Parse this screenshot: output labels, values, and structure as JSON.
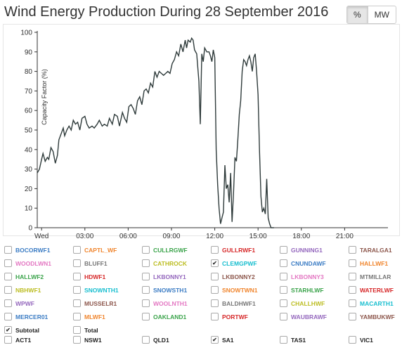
{
  "title": "Wind Energy Production During 28 September 2016",
  "toggle": {
    "percent": "%",
    "mw": "MW"
  },
  "chart_data": {
    "type": "line",
    "ylabel": "Capacity Factor (%)",
    "ylim": [
      0,
      100
    ],
    "yticks": [
      "0",
      "10",
      "20",
      "30",
      "40",
      "50",
      "60",
      "70",
      "80",
      "90",
      "100"
    ],
    "xlim": [
      -0.3,
      24
    ],
    "xticks": [
      {
        "v": 0,
        "label": "Wed"
      },
      {
        "v": 3,
        "label": "03:00"
      },
      {
        "v": 6,
        "label": "06:00"
      },
      {
        "v": 9,
        "label": "09:00"
      },
      {
        "v": 12,
        "label": "12:00"
      },
      {
        "v": 15,
        "label": "15:00"
      },
      {
        "v": 18,
        "label": "18:00"
      },
      {
        "v": 21,
        "label": "21:00"
      }
    ],
    "series": [
      {
        "color": "#2f3b3b",
        "x": [
          -0.3,
          -0.15,
          0,
          0.1,
          0.25,
          0.4,
          0.5,
          0.65,
          0.8,
          0.95,
          1.1,
          1.2,
          1.35,
          1.5,
          1.6,
          1.75,
          1.9,
          2.05,
          2.2,
          2.35,
          2.5,
          2.65,
          2.8,
          3.0,
          3.15,
          3.3,
          3.5,
          3.65,
          3.85,
          4.0,
          4.2,
          4.35,
          4.55,
          4.7,
          4.9,
          5.05,
          5.25,
          5.4,
          5.6,
          5.75,
          5.9,
          6.05,
          6.2,
          6.35,
          6.5,
          6.65,
          6.8,
          6.95,
          7.1,
          7.25,
          7.4,
          7.55,
          7.7,
          7.85,
          8.0,
          8.15,
          8.3,
          8.45,
          8.6,
          8.75,
          8.9,
          9.05,
          9.2,
          9.35,
          9.5,
          9.65,
          9.8,
          9.95,
          10.05,
          10.15,
          10.3,
          10.4,
          10.5,
          10.6,
          10.75,
          10.9,
          11.0,
          11.1,
          11.2,
          11.3,
          11.45,
          11.6,
          11.7,
          11.8,
          11.9,
          12.0,
          12.1,
          12.2,
          12.3,
          12.4,
          12.5,
          12.6,
          12.7,
          12.8,
          12.9,
          13.0,
          13.1,
          13.2,
          13.3,
          13.4,
          13.5,
          13.6,
          13.7,
          13.8,
          13.9,
          14.0,
          14.1,
          14.2,
          14.3,
          14.4,
          14.5,
          14.6,
          14.7,
          14.8,
          14.9,
          15.0,
          15.1,
          15.2,
          15.3,
          15.4,
          15.5,
          15.6,
          15.7,
          15.8,
          15.9,
          16.0,
          16.05,
          16.1
        ],
        "values": [
          28,
          30,
          35,
          38,
          34,
          36,
          35,
          41,
          39,
          33,
          37,
          45,
          48,
          51,
          47,
          50,
          52,
          50,
          55,
          53,
          54,
          50,
          56,
          57,
          53,
          51,
          52,
          51,
          53,
          55,
          52,
          53,
          52,
          56,
          53,
          58,
          57,
          52,
          59,
          56,
          54,
          62,
          63,
          61,
          58,
          65,
          67,
          63,
          70,
          71,
          69,
          74,
          72,
          80,
          77,
          80,
          79,
          78,
          79,
          80,
          79,
          84,
          86,
          90,
          88,
          94,
          90,
          96,
          92,
          96,
          95,
          97,
          96,
          91,
          89,
          75,
          53,
          89,
          85,
          92,
          90,
          90,
          88,
          85,
          91,
          87,
          40,
          22,
          10,
          2,
          5,
          8,
          32,
          20,
          22,
          13,
          28,
          3,
          18,
          36,
          34,
          45,
          58,
          65,
          80,
          86,
          85,
          83,
          86,
          88,
          85,
          80,
          87,
          89,
          80,
          68,
          40,
          16,
          8,
          10,
          7,
          25,
          5,
          2,
          0,
          0,
          0,
          0
        ]
      }
    ]
  },
  "legend": [
    [
      {
        "label": "BOCORWF1",
        "color": "#3b7cc4",
        "checked": false
      },
      {
        "label": "CAPTL_WF",
        "color": "#f0852d",
        "checked": false
      },
      {
        "label": "CULLRGWF",
        "color": "#3aa34a",
        "checked": false
      },
      {
        "label": "GULLRWF1",
        "color": "#d62728",
        "checked": false
      },
      {
        "label": "GUNNING1",
        "color": "#9467bd",
        "checked": false
      },
      {
        "label": "TARALGA1",
        "color": "#8c564b",
        "checked": false
      }
    ],
    [
      {
        "label": "WOODLWN1",
        "color": "#e377c2",
        "checked": false
      },
      {
        "label": "BLUFF1",
        "color": "#777777",
        "checked": false
      },
      {
        "label": "CATHROCK",
        "color": "#bcbd22",
        "checked": false
      },
      {
        "label": "CLEMGPWF",
        "color": "#17becf",
        "checked": true
      },
      {
        "label": "CNUNDAWF",
        "color": "#3b7cc4",
        "checked": false
      },
      {
        "label": "HALLWF1",
        "color": "#f0852d",
        "checked": false
      }
    ],
    [
      {
        "label": "HALLWF2",
        "color": "#3aa34a",
        "checked": false
      },
      {
        "label": "HDWF1",
        "color": "#d62728",
        "checked": false
      },
      {
        "label": "LKBONNY1",
        "color": "#9467bd",
        "checked": false
      },
      {
        "label": "LKBONNY2",
        "color": "#8c564b",
        "checked": false
      },
      {
        "label": "LKBONNY3",
        "color": "#e377c2",
        "checked": false
      },
      {
        "label": "MTMILLAR",
        "color": "#777777",
        "checked": false
      }
    ],
    [
      {
        "label": "NBHWF1",
        "color": "#bcbd22",
        "checked": false
      },
      {
        "label": "SNOWNTH1",
        "color": "#17becf",
        "checked": false
      },
      {
        "label": "SNOWSTH1",
        "color": "#3b7cc4",
        "checked": false
      },
      {
        "label": "SNOWTWN1",
        "color": "#f0852d",
        "checked": false
      },
      {
        "label": "STARHLWF",
        "color": "#3aa34a",
        "checked": false
      },
      {
        "label": "WATERLWF",
        "color": "#d62728",
        "checked": false
      }
    ],
    [
      {
        "label": "WPWF",
        "color": "#9467bd",
        "checked": false
      },
      {
        "label": "MUSSELR1",
        "color": "#8c564b",
        "checked": false
      },
      {
        "label": "WOOLNTH1",
        "color": "#e377c2",
        "checked": false
      },
      {
        "label": "BALDHWF1",
        "color": "#777777",
        "checked": false
      },
      {
        "label": "CHALLHWF",
        "color": "#bcbd22",
        "checked": false
      },
      {
        "label": "MACARTH1",
        "color": "#17becf",
        "checked": false
      }
    ],
    [
      {
        "label": "MERCER01",
        "color": "#3b7cc4",
        "checked": false
      },
      {
        "label": "MLWF1",
        "color": "#f0852d",
        "checked": false
      },
      {
        "label": "OAKLAND1",
        "color": "#3aa34a",
        "checked": false
      },
      {
        "label": "PORTWF",
        "color": "#d62728",
        "checked": false
      },
      {
        "label": "WAUBRAWF",
        "color": "#9467bd",
        "checked": false
      },
      {
        "label": "YAMBUKWF",
        "color": "#8c564b",
        "checked": false
      }
    ],
    [
      {
        "label": "Subtotal",
        "color": "#222222",
        "checked": true
      },
      {
        "label": "Total",
        "color": "#222222",
        "checked": false
      }
    ]
  ],
  "regions": [
    {
      "label": "ACT1",
      "checked": false
    },
    {
      "label": "NSW1",
      "checked": false
    },
    {
      "label": "QLD1",
      "checked": false
    },
    {
      "label": "SA1",
      "checked": true
    },
    {
      "label": "TAS1",
      "checked": false
    },
    {
      "label": "VIC1",
      "checked": false
    }
  ]
}
